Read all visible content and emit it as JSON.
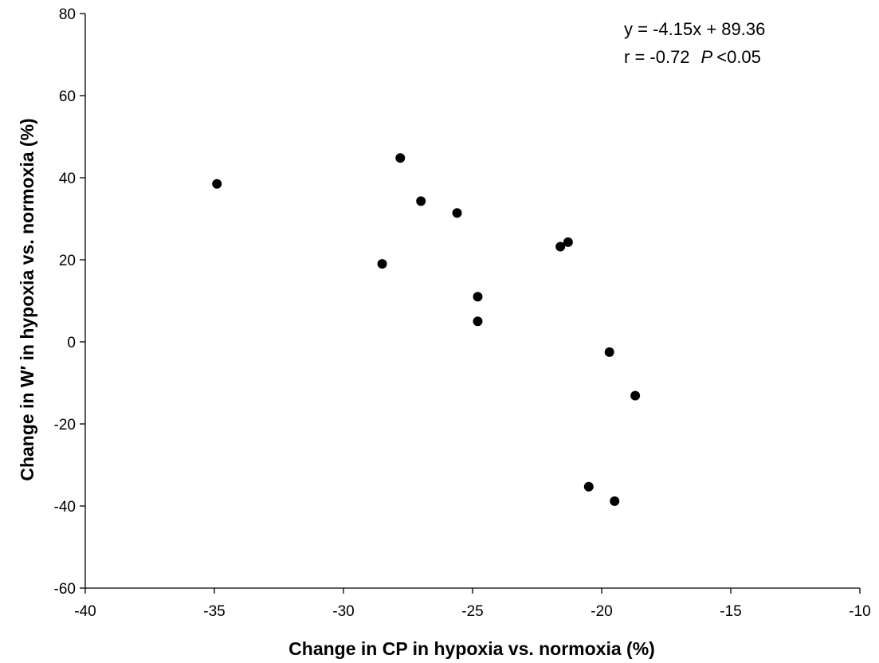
{
  "chart_data": {
    "type": "scatter",
    "xlabel": "Change in CP in hypoxia vs. normoxia (%)",
    "ylabel": "Change in W′ in hypoxia vs. normoxia (%)",
    "xlim": [
      -40,
      -10
    ],
    "ylim": [
      -60,
      80
    ],
    "xticks": [
      -40,
      -35,
      -30,
      -25,
      -20,
      -15,
      -10
    ],
    "yticks": [
      -60,
      -40,
      -20,
      0,
      20,
      40,
      60,
      80
    ],
    "xtick_labels": [
      "-40",
      "-35",
      "-30",
      "-25",
      "-20",
      "-15",
      "-10"
    ],
    "ytick_labels": [
      "-60",
      "-40",
      "-20",
      "0",
      "20",
      "40",
      "60",
      "80"
    ],
    "grid": false,
    "series": [
      {
        "x": [
          -34.9,
          -28.5,
          -27.8,
          -27.0,
          -25.6,
          -24.8,
          -24.8,
          -21.6,
          -21.3,
          -20.5,
          -19.7,
          -19.5,
          -18.7
        ],
        "y": [
          38.5,
          19.0,
          44.8,
          34.3,
          31.4,
          11.0,
          5.0,
          23.2,
          24.3,
          -35.3,
          -2.5,
          -38.8,
          -13.1
        ]
      }
    ],
    "trendline": {
      "slope": -4.15,
      "intercept": 89.36,
      "x_range": [
        -35,
        -10
      ]
    },
    "annotations": {
      "equation": "y = -4.15x + 89.36",
      "r_text": "r = -0.72",
      "p_label": "P",
      "p_text": "<0.05"
    },
    "colors": {
      "points": "#000000",
      "line": "#000000",
      "axis": "#000000"
    }
  }
}
